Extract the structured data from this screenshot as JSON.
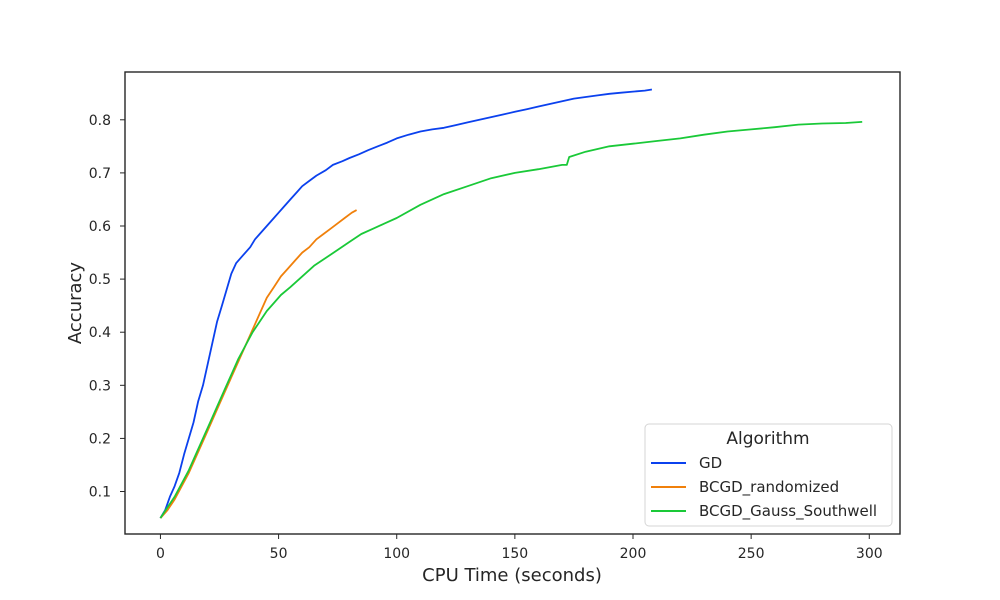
{
  "chart_data": {
    "type": "line",
    "title": "",
    "xlabel": "CPU Time (seconds)",
    "ylabel": "Accuracy",
    "xlim": [
      -15,
      313
    ],
    "ylim": [
      0.02,
      0.89
    ],
    "x_ticks": [
      0,
      50,
      100,
      150,
      200,
      250,
      300
    ],
    "y_ticks": [
      0.1,
      0.2,
      0.3,
      0.4,
      0.5,
      0.6,
      0.7,
      0.8
    ],
    "x_tick_labels": [
      "0",
      "50",
      "100",
      "150",
      "200",
      "250",
      "300"
    ],
    "y_tick_labels": [
      "0.1",
      "0.2",
      "0.3",
      "0.4",
      "0.5",
      "0.6",
      "0.7",
      "0.8"
    ],
    "grid": false,
    "legend": {
      "title": "Algorithm",
      "position": "bottom-right"
    },
    "series": [
      {
        "name": "GD",
        "color": "#0b41ee",
        "x": [
          0,
          2,
          4,
          6,
          8,
          10,
          12,
          14,
          16,
          18,
          20,
          22,
          24,
          26,
          28,
          30,
          32,
          35,
          38,
          40,
          42,
          45,
          48,
          50,
          52,
          55,
          58,
          60,
          63,
          66,
          70,
          73,
          77,
          80,
          84,
          88,
          92,
          96,
          100,
          105,
          110,
          115,
          120,
          125,
          130,
          135,
          140,
          145,
          150,
          155,
          160,
          165,
          170,
          175,
          180,
          185,
          190,
          195,
          200,
          205,
          208
        ],
        "y": [
          0.05,
          0.065,
          0.09,
          0.11,
          0.135,
          0.17,
          0.2,
          0.23,
          0.27,
          0.3,
          0.34,
          0.38,
          0.42,
          0.45,
          0.48,
          0.51,
          0.53,
          0.545,
          0.56,
          0.575,
          0.585,
          0.6,
          0.615,
          0.625,
          0.635,
          0.65,
          0.665,
          0.675,
          0.685,
          0.695,
          0.705,
          0.715,
          0.722,
          0.728,
          0.735,
          0.743,
          0.75,
          0.757,
          0.765,
          0.772,
          0.778,
          0.782,
          0.785,
          0.79,
          0.795,
          0.8,
          0.805,
          0.81,
          0.815,
          0.82,
          0.825,
          0.83,
          0.835,
          0.84,
          0.843,
          0.846,
          0.849,
          0.851,
          0.853,
          0.855,
          0.857
        ]
      },
      {
        "name": "BCGD_randomized",
        "color": "#f0800b",
        "x": [
          0,
          3,
          6,
          9,
          12,
          15,
          18,
          21,
          24,
          27,
          30,
          33,
          36,
          39,
          42,
          45,
          48,
          51,
          54,
          57,
          60,
          63,
          66,
          69,
          72,
          75,
          78,
          81,
          83
        ],
        "y": [
          0.05,
          0.065,
          0.085,
          0.11,
          0.135,
          0.165,
          0.195,
          0.225,
          0.255,
          0.285,
          0.315,
          0.345,
          0.375,
          0.405,
          0.435,
          0.465,
          0.485,
          0.505,
          0.52,
          0.535,
          0.55,
          0.56,
          0.575,
          0.585,
          0.595,
          0.605,
          0.615,
          0.625,
          0.63
        ]
      },
      {
        "name": "BCGD_Gauss_Southwell",
        "color": "#1ac938",
        "x": [
          0,
          3,
          6,
          9,
          12,
          15,
          18,
          21,
          24,
          27,
          30,
          33,
          36,
          39,
          42,
          45,
          48,
          51,
          55,
          60,
          65,
          70,
          75,
          80,
          85,
          90,
          95,
          100,
          110,
          120,
          130,
          140,
          150,
          160,
          170,
          172,
          173,
          180,
          190,
          200,
          210,
          220,
          230,
          240,
          250,
          260,
          270,
          280,
          290,
          297
        ],
        "y": [
          0.05,
          0.07,
          0.09,
          0.115,
          0.14,
          0.17,
          0.2,
          0.23,
          0.26,
          0.29,
          0.32,
          0.35,
          0.375,
          0.4,
          0.42,
          0.44,
          0.455,
          0.47,
          0.485,
          0.505,
          0.525,
          0.54,
          0.555,
          0.57,
          0.585,
          0.595,
          0.605,
          0.615,
          0.64,
          0.66,
          0.675,
          0.69,
          0.7,
          0.707,
          0.715,
          0.715,
          0.73,
          0.74,
          0.75,
          0.755,
          0.76,
          0.765,
          0.772,
          0.778,
          0.782,
          0.786,
          0.791,
          0.793,
          0.794,
          0.796
        ]
      }
    ]
  }
}
